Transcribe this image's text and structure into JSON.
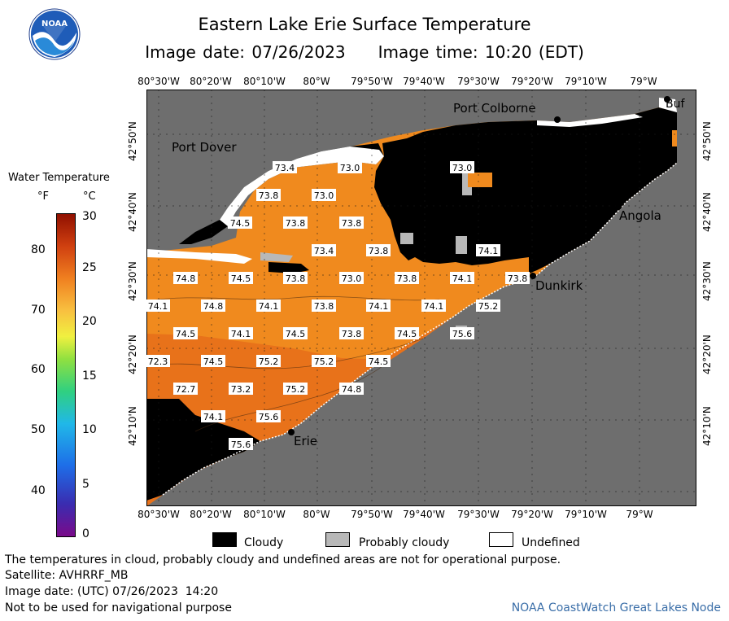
{
  "header": {
    "title": "Eastern Lake Erie Surface Temperature",
    "image_date": "Image date: 07/26/2023",
    "image_time": "Image time: 10:20 (EDT)",
    "logo_text": "NOAA"
  },
  "map": {
    "lon_ticks": [
      "80°30'W",
      "80°20'W",
      "80°10'W",
      "80°W",
      "79°50'W",
      "79°40'W",
      "79°30'W",
      "79°20'W",
      "79°10'W",
      "79°W"
    ],
    "lat_ticks": [
      "42°50'N",
      "42°40'N",
      "42°30'N",
      "42°20'N",
      "42°10'N"
    ],
    "places": {
      "port_colborne": "Port Colborne",
      "buffalo": "Buf",
      "port_dover": "Port Dover",
      "angola": "Angola",
      "dunkirk": "Dunkirk",
      "erie": "Erie"
    },
    "temperature_labels": [
      "73.4",
      "73.0",
      "73.0",
      "73.8",
      "73.0",
      "74.5",
      "73.8",
      "73.8",
      "73.4",
      "73.8",
      "74.1",
      "74.8",
      "74.5",
      "73.8",
      "73.0",
      "73.8",
      "74.1",
      "73.8",
      "74.1",
      "74.8",
      "74.1",
      "73.8",
      "74.1",
      "74.1",
      "75.2",
      "74.5",
      "74.1",
      "74.5",
      "73.8",
      "74.5",
      "75.6",
      "72.3",
      "74.5",
      "75.2",
      "75.2",
      "74.5",
      "72.7",
      "73.2",
      "75.2",
      "74.8",
      "74.1",
      "75.6",
      "75.6"
    ],
    "colors": {
      "water_warm": "#f08a1e",
      "water_hot": "#e8721a",
      "cloud": "#000000",
      "probably_cloudy": "#b8b8b8",
      "land": "#6e6e6e",
      "undefined": "#ffffff"
    }
  },
  "legend": {
    "title": "Water Temperature",
    "unit_f": "°F",
    "unit_c": "°C",
    "f_ticks": [
      "80",
      "70",
      "60",
      "50",
      "40"
    ],
    "c_ticks": [
      "30",
      "25",
      "20",
      "15",
      "10",
      "5",
      "0"
    ],
    "cloudy": "Cloudy",
    "probably_cloudy": "Probably cloudy",
    "undefined": "Undefined"
  },
  "footer": {
    "disclaimer": "The temperatures in cloud, probably cloudy and undefined areas are not for operational purpose.",
    "satellite": "Satellite: AVHRRF_MB",
    "utc_date": "Image date: (UTC) 07/26/2023  14:20",
    "navigation": "Not to be used for navigational purpose",
    "credit": "NOAA CoastWatch Great Lakes Node"
  }
}
